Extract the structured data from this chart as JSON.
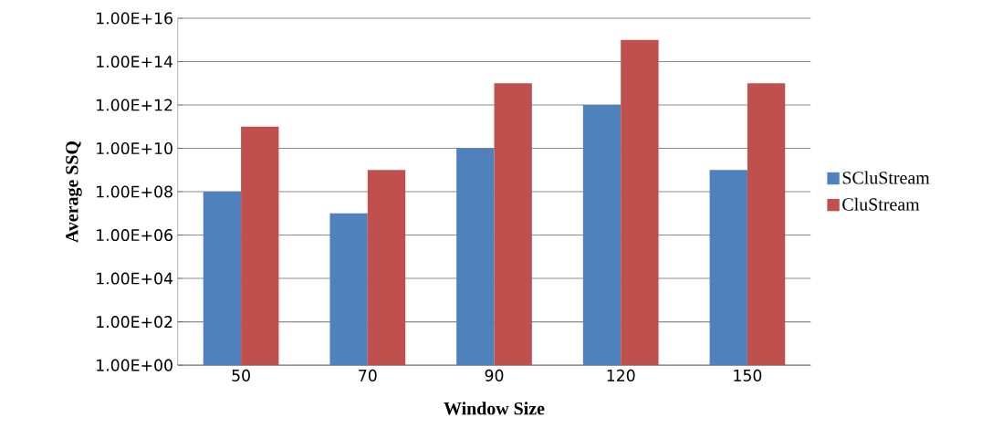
{
  "chart_data": {
    "type": "bar",
    "xlabel": "Window Size",
    "ylabel": "Average SSQ",
    "categories": [
      "50",
      "70",
      "90",
      "120",
      "150"
    ],
    "series": [
      {
        "name": "SCluStream",
        "color": "#4f81bd",
        "values": [
          100000000.0,
          10000000.0,
          10000000000.0,
          1000000000000.0,
          1000000000.0
        ]
      },
      {
        "name": "CluStream",
        "color": "#c0504d",
        "values": [
          100000000000.0,
          1000000000.0,
          10000000000000.0,
          1000000000000000.0,
          10000000000000.0
        ]
      }
    ],
    "log": "y",
    "ylim": [
      1,
      1e+16
    ],
    "yticks": [
      {
        "value": 1,
        "label": "1.00E+00"
      },
      {
        "value": 100.0,
        "label": "1.00E+02"
      },
      {
        "value": 10000.0,
        "label": "1.00E+04"
      },
      {
        "value": 1000000.0,
        "label": "1.00E+06"
      },
      {
        "value": 100000000.0,
        "label": "1.00E+08"
      },
      {
        "value": 10000000000.0,
        "label": "1.00E+10"
      },
      {
        "value": 1000000000000.0,
        "label": "1.00E+12"
      },
      {
        "value": 100000000000000.0,
        "label": "1.00E+14"
      },
      {
        "value": 1e+16,
        "label": "1.00E+16"
      }
    ],
    "grid": "y",
    "legend": "right"
  }
}
